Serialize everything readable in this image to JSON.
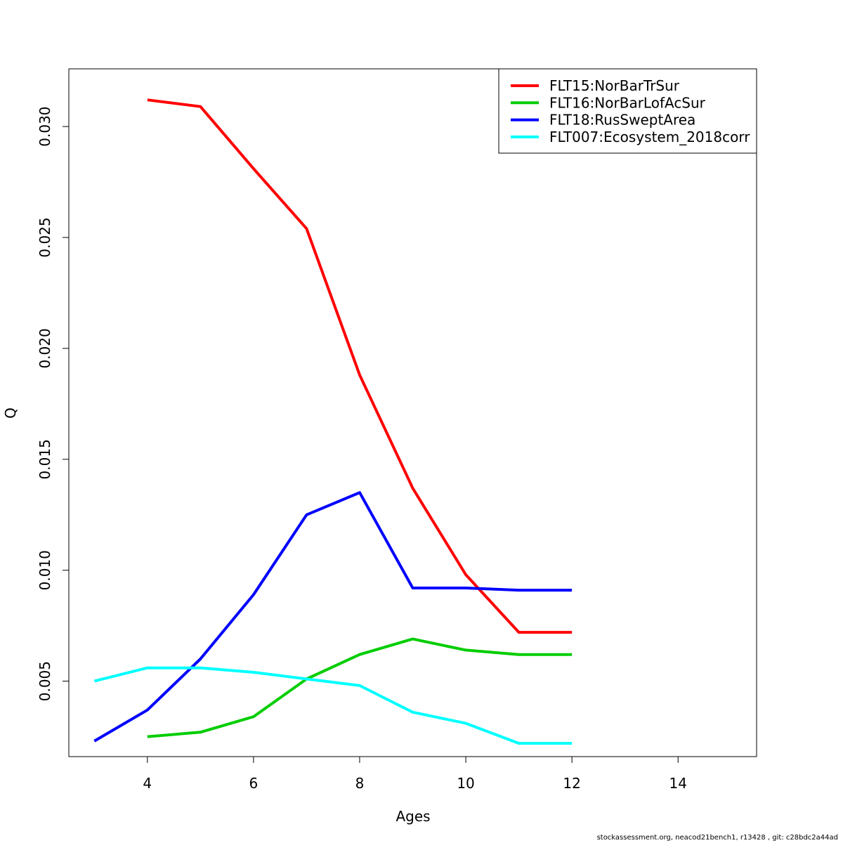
{
  "chart_data": {
    "type": "line",
    "title": "",
    "xlabel": "Ages",
    "ylabel": "Q",
    "xlim": [
      2.52,
      15.48
    ],
    "ylim": [
      0.0016,
      0.0326
    ],
    "xticks": [
      4,
      6,
      8,
      10,
      12,
      14
    ],
    "yticks": [
      0.005,
      0.01,
      0.015,
      0.02,
      0.025,
      0.03
    ],
    "ytick_labels": [
      "0.005",
      "0.010",
      "0.015",
      "0.020",
      "0.025",
      "0.030"
    ],
    "grid": false,
    "legend_position": "top-right",
    "series": [
      {
        "name": "FLT15:NorBarTrSur",
        "color": "#ff0000",
        "x": [
          4,
          5,
          6,
          7,
          8,
          9,
          10,
          11,
          12
        ],
        "y": [
          0.0312,
          0.0309,
          0.0281,
          0.0254,
          0.0188,
          0.0137,
          0.0098,
          0.0072,
          0.0072
        ]
      },
      {
        "name": "FLT16:NorBarLofAcSur",
        "color": "#00cd00",
        "x": [
          4,
          5,
          6,
          7,
          8,
          9,
          10,
          11,
          12
        ],
        "y": [
          0.0025,
          0.0027,
          0.0034,
          0.0051,
          0.0062,
          0.0069,
          0.0064,
          0.0062,
          0.0062
        ]
      },
      {
        "name": "FLT18:RusSweptArea",
        "color": "#0000ff",
        "x": [
          3,
          4,
          5,
          6,
          7,
          8,
          9,
          10,
          11,
          12
        ],
        "y": [
          0.0023,
          0.0037,
          0.006,
          0.0089,
          0.0125,
          0.0135,
          0.0092,
          0.0092,
          0.0091,
          0.0091
        ]
      },
      {
        "name": "FLT007:Ecosystem_2018corr",
        "color": "#00ffff",
        "x": [
          3,
          4,
          5,
          6,
          7,
          8,
          9,
          10,
          11,
          12
        ],
        "y": [
          0.005,
          0.0056,
          0.0056,
          0.0054,
          0.0051,
          0.0048,
          0.0036,
          0.0031,
          0.0022,
          0.0022
        ]
      }
    ]
  },
  "footer": "stockassessment.org, neacod21bench1, r13428 , git: c28bdc2a44ad"
}
